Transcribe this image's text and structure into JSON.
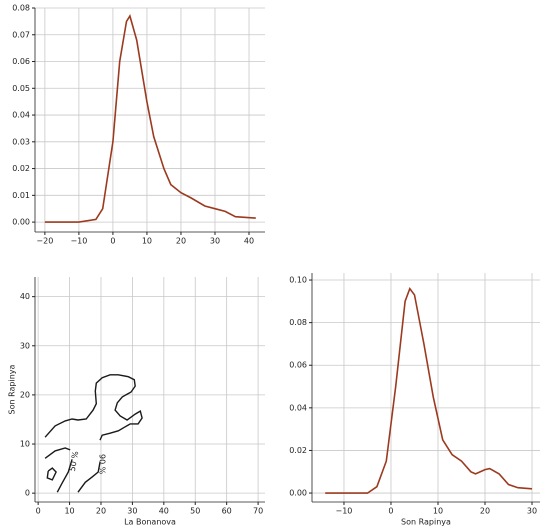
{
  "chart_data": [
    {
      "type": "line",
      "color": "#9c3a1f",
      "grid": true,
      "x": [
        -20,
        -10,
        -5,
        -3,
        0,
        2,
        4,
        5,
        7,
        10,
        12,
        15,
        17,
        20,
        23,
        27,
        30,
        33,
        36,
        42
      ],
      "y": [
        0,
        0,
        0.001,
        0.005,
        0.03,
        0.06,
        0.075,
        0.077,
        0.068,
        0.045,
        0.032,
        0.02,
        0.014,
        0.011,
        0.009,
        0.006,
        0.005,
        0.004,
        0.002,
        0.0015
      ],
      "xlim": [
        -22.9,
        44.7
      ],
      "ylim": [
        -0.0037,
        0.08
      ],
      "xticks": [
        {
          "value": -20,
          "label": "−20"
        },
        {
          "value": -10,
          "label": "−10"
        },
        0,
        10,
        20,
        30,
        40
      ],
      "yticks": [
        {
          "value": 0,
          "label": "0.00"
        },
        {
          "value": 0.01,
          "label": "0.01"
        },
        {
          "value": 0.02,
          "label": "0.02"
        },
        {
          "value": 0.03,
          "label": "0.03"
        },
        {
          "value": 0.04,
          "label": "0.04"
        },
        {
          "value": 0.05,
          "label": "0.05"
        },
        {
          "value": 0.06,
          "label": "0.06"
        },
        {
          "value": 0.07,
          "label": "0.07"
        },
        {
          "value": 0.08,
          "label": "0.08"
        }
      ]
    },
    {
      "type": "contour",
      "color": "#1a1a1a",
      "grid": true,
      "xlabel": "La Bonanova",
      "ylabel": "Son Rapinya",
      "xlim": [
        -1,
        72.2
      ],
      "ylim": [
        -1.8,
        44
      ],
      "xticks": [
        0,
        10,
        20,
        30,
        40,
        50,
        60,
        70
      ],
      "yticks": [
        0,
        10,
        20,
        30,
        40
      ],
      "levels": [
        {
          "label": "50 %",
          "pieces": [
            {
              "x": [
                2.2,
                5.4,
                8.6,
                10.2
              ],
              "y": [
                7.1,
                8.6,
                9.2,
                8.8
              ]
            },
            {
              "x": [
                10.8,
                9.6,
                7.6,
                6.1
              ],
              "y": [
                6.9,
                4.3,
                2.0,
                0.2
              ]
            },
            {
              "x": [
                3.2,
                4.5,
                5.7,
                4.5,
                2.9,
                3.2
              ],
              "y": [
                4.5,
                5.1,
                4.3,
                2.7,
                3.1,
                4.5
              ]
            }
          ]
        },
        {
          "label": "90 %",
          "pieces": [
            {
              "x": [
                2.2,
                5.4,
                8.6,
                10.8,
                12.7,
                15.3,
                17.5,
                18.5,
                18.2,
                18.5,
                20.4,
                22.9,
                25.5,
                28.7,
                30.6,
                30.9,
                29.6,
                26.8,
                25.2,
                24.5,
                26.1,
                28.3,
                30.9,
                32.5,
                33.1,
                31.8,
                29.3,
                27.7,
                25.5,
                22.9,
                20.4,
                19.7
              ],
              "y": [
                11.4,
                13.7,
                14.7,
                15.1,
                14.9,
                15.1,
                16.9,
                18.2,
                20.8,
                22.4,
                23.5,
                24.1,
                24.1,
                23.7,
                23.1,
                21.8,
                20.6,
                19.6,
                18.4,
                16.9,
                15.7,
                14.9,
                16.1,
                16.7,
                15.3,
                14.1,
                14.1,
                13.5,
                12.7,
                12.2,
                11.8,
                10.8
              ]
            },
            {
              "x": [
                19.7,
                19.1,
                17.2,
                15.0,
                12.7
              ],
              "y": [
                6.3,
                4.3,
                3.3,
                2.2,
                0.2
              ]
            }
          ]
        }
      ]
    },
    {
      "type": "line",
      "color": "#9c3a1f",
      "grid": true,
      "xlabel": "Son Rapinya",
      "x": [
        -14,
        -5,
        -3,
        -1,
        1,
        3,
        4,
        5,
        7,
        9,
        11,
        13,
        15,
        17,
        18,
        20,
        21,
        23,
        25,
        27,
        30
      ],
      "y": [
        0,
        0,
        0.003,
        0.015,
        0.05,
        0.09,
        0.096,
        0.093,
        0.07,
        0.045,
        0.025,
        0.018,
        0.015,
        0.01,
        0.009,
        0.011,
        0.0115,
        0.009,
        0.004,
        0.0025,
        0.002
      ],
      "xlim": [
        -16.8,
        31.7
      ],
      "ylim": [
        -0.0042,
        0.1033
      ],
      "xticks": [
        {
          "value": -10,
          "label": "−10"
        },
        0,
        10,
        20,
        30
      ],
      "yticks": [
        {
          "value": 0,
          "label": "0.00"
        },
        {
          "value": 0.02,
          "label": "0.02"
        },
        {
          "value": 0.04,
          "label": "0.04"
        },
        {
          "value": 0.06,
          "label": "0.06"
        },
        {
          "value": 0.08,
          "label": "0.08"
        },
        {
          "value": 0.1,
          "label": "0.10"
        }
      ]
    }
  ]
}
